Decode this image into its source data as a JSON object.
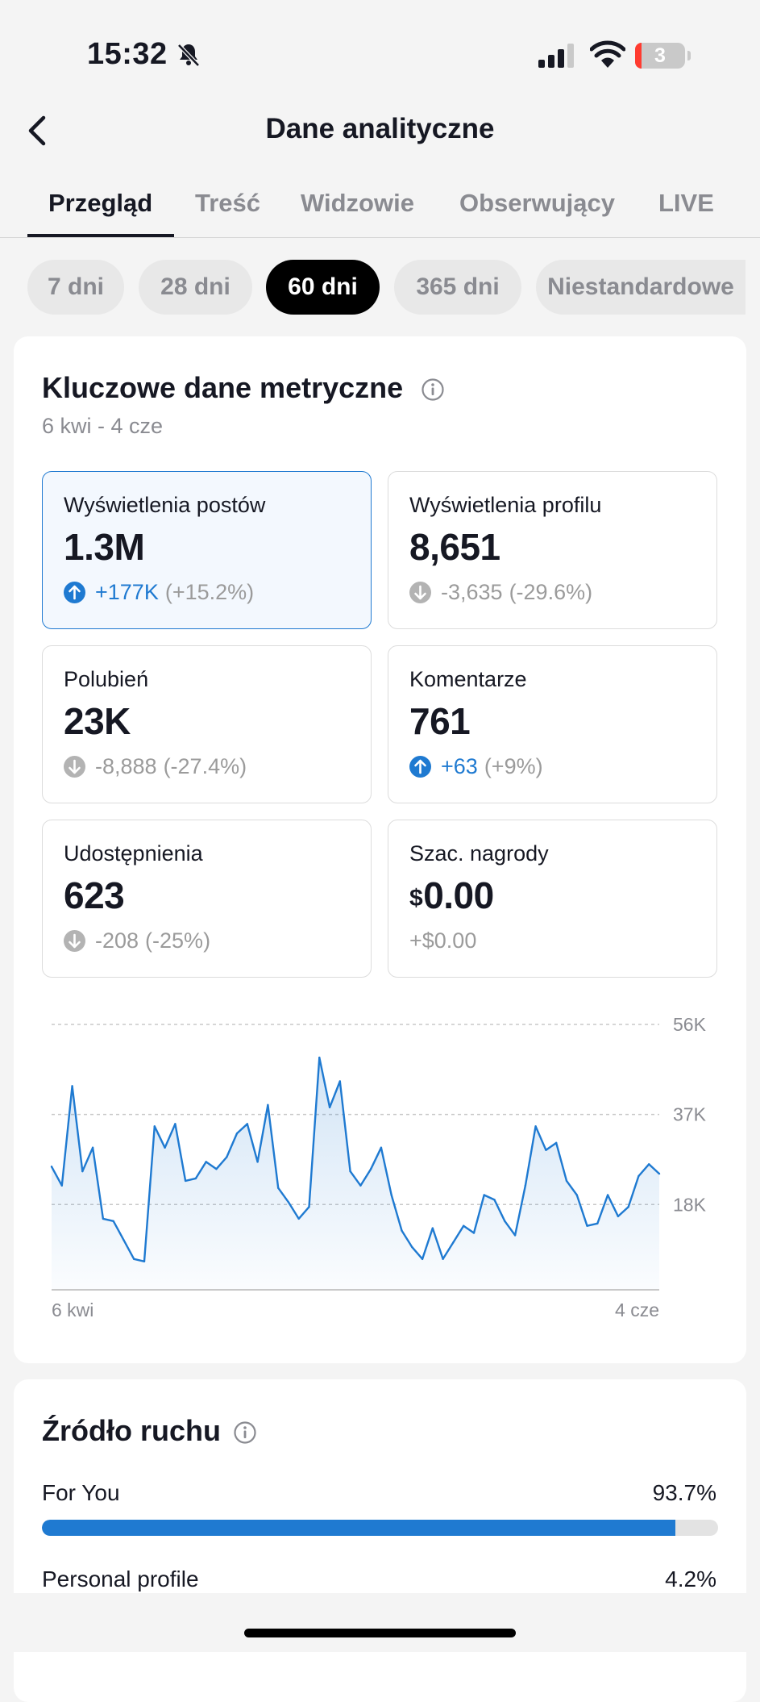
{
  "status_bar": {
    "time": "15:32",
    "battery": "3"
  },
  "header": {
    "title": "Dane analityczne"
  },
  "tabs": [
    {
      "label": "Przegląd",
      "active": true
    },
    {
      "label": "Treść"
    },
    {
      "label": "Widzowie"
    },
    {
      "label": "Obserwujący"
    },
    {
      "label": "LIVE"
    }
  ],
  "periods": [
    {
      "label": "7 dni"
    },
    {
      "label": "28 dni"
    },
    {
      "label": "60 dni",
      "active": true
    },
    {
      "label": "365 dni"
    },
    {
      "label": "Niestandardowe"
    }
  ],
  "metrics": {
    "title": "Kluczowe dane metryczne",
    "range": "6 kwi - 4 cze",
    "items": [
      {
        "label": "Wyświetlenia postów",
        "value": "1.3M",
        "delta": "+177K",
        "delta_pct": "(+15.2%)",
        "direction": "up",
        "selected": true
      },
      {
        "label": "Wyświetlenia profilu",
        "value": "8,651",
        "delta": "-3,635",
        "delta_pct": "(-29.6%)",
        "direction": "down"
      },
      {
        "label": "Polubień",
        "value": "23K",
        "delta": "-8,888",
        "delta_pct": "(-27.4%)",
        "direction": "down"
      },
      {
        "label": "Komentarze",
        "value": "761",
        "delta": "+63",
        "delta_pct": "(+9%)",
        "direction": "up"
      },
      {
        "label": "Udostępnienia",
        "value": "623",
        "delta": "-208",
        "delta_pct": "(-25%)",
        "direction": "down"
      },
      {
        "label": "Szac. nagrody",
        "currency": "$",
        "value": "0.00",
        "delta": "+$0.00",
        "delta_pct": "",
        "direction": "none"
      }
    ]
  },
  "chart_data": {
    "type": "area",
    "x_start_label": "6 kwi",
    "x_end_label": "4 cze",
    "ylim": [
      0,
      56000
    ],
    "y_ticks": [
      {
        "value": 56000,
        "label": "56K"
      },
      {
        "value": 37000,
        "label": "37K"
      },
      {
        "value": 18000,
        "label": "18K"
      }
    ],
    "values": [
      26000,
      22000,
      43000,
      25000,
      30000,
      15000,
      14500,
      10500,
      6500,
      6000,
      34500,
      30000,
      35000,
      23000,
      23500,
      27000,
      25500,
      28000,
      33000,
      35000,
      27000,
      39000,
      21500,
      18500,
      15000,
      17500,
      49000,
      38500,
      44000,
      25000,
      22000,
      25500,
      30000,
      20000,
      12500,
      9000,
      6500,
      13000,
      6500,
      10000,
      13500,
      12000,
      20000,
      19000,
      14500,
      11500,
      22000,
      34500,
      29500,
      31000,
      23000,
      20000,
      13500,
      14000,
      20000,
      15500,
      17500,
      24000,
      26500,
      24500
    ],
    "color": "#1f7ad1"
  },
  "traffic": {
    "title": "Źródło ruchu",
    "items": [
      {
        "label": "For You",
        "pct": "93.7%",
        "value": 93.7
      },
      {
        "label": "Personal profile",
        "pct": "4.2%",
        "value": 4.2
      }
    ]
  }
}
